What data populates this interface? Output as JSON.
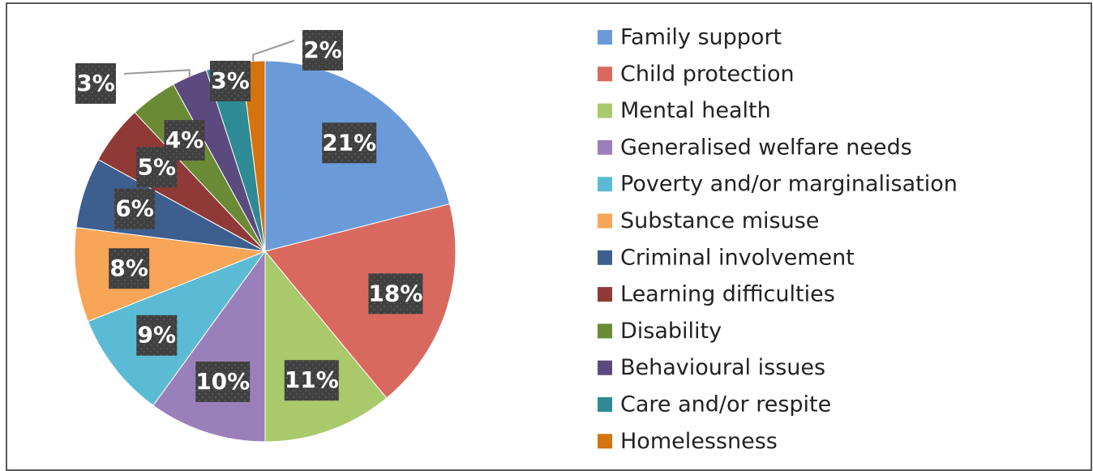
{
  "chart_data": {
    "type": "pie",
    "categories": [
      "Family support",
      "Child protection",
      "Mental health",
      "Generalised welfare needs",
      "Poverty and/or marginalisation",
      "Substance misuse",
      "Criminal involvement",
      "Learning difficulties",
      "Disability",
      "Behavioural issues",
      "Care and/or respite",
      "Homelessness"
    ],
    "values": [
      21,
      18,
      11,
      10,
      9,
      8,
      6,
      5,
      4,
      3,
      3,
      2
    ],
    "value_labels": [
      "21%",
      "18%",
      "11%",
      "10%",
      "9%",
      "8%",
      "6%",
      "5%",
      "4%",
      "3%",
      "3%",
      "2%"
    ],
    "colors": [
      "#6a9bd8",
      "#d9695f",
      "#a9c96a",
      "#9a80bb",
      "#5bbbd4",
      "#f8a557",
      "#3d5f8f",
      "#8f3a36",
      "#6b8a35",
      "#5b4a7e",
      "#2e8a94",
      "#d4730f"
    ],
    "legend": "right"
  }
}
